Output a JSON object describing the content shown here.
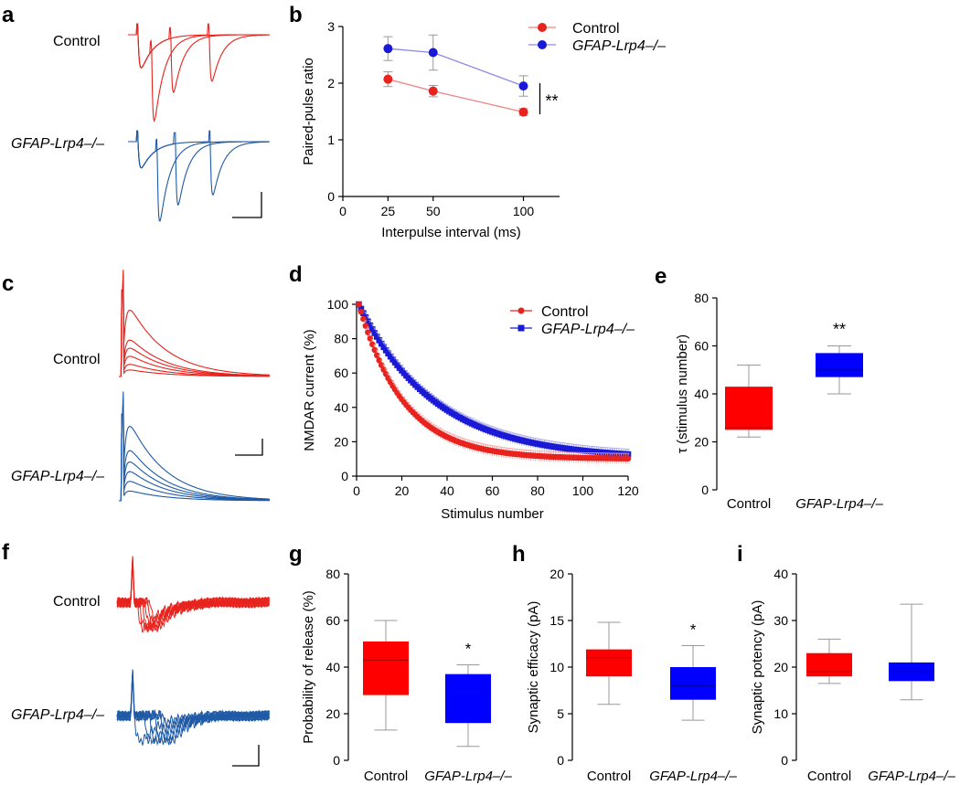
{
  "panel_labels": {
    "a": "a",
    "b": "b",
    "c": "c",
    "d": "d",
    "e": "e",
    "f": "f",
    "g": "g",
    "h": "h",
    "i": "i"
  },
  "groups": {
    "control": "Control",
    "mutant": "GFAP-Lrp4–/–"
  },
  "colors": {
    "control_trace": "#e8231d",
    "mutant_trace": "#1f5aa6",
    "control_marker": "#e8231d",
    "mutant_marker": "#1a1ad6",
    "control_box": "#ff0000",
    "mutant_box": "#0000ff",
    "axis": "#000000",
    "error": "#999999"
  },
  "chart_data": [
    {
      "id": "b",
      "type": "line",
      "xlabel": "Interpulse interval (ms)",
      "ylabel": "Paired-pulse ratio",
      "xlim": [
        0,
        120
      ],
      "ylim": [
        0,
        3
      ],
      "xticks": [
        "0",
        "25",
        "50",
        "100"
      ],
      "yticks": [
        "0",
        "1",
        "2",
        "3"
      ],
      "categories": [
        "25",
        "50",
        "100"
      ],
      "series": [
        {
          "name": "Control",
          "values": [
            2.07,
            1.86,
            1.49
          ],
          "errors": [
            0.13,
            0.1,
            0.06
          ]
        },
        {
          "name": "GFAP-Lrp4–/–",
          "values": [
            2.61,
            2.54,
            1.95
          ],
          "errors": [
            0.21,
            0.31,
            0.18
          ]
        }
      ],
      "annotation": "**",
      "legend": "top-right"
    },
    {
      "id": "d",
      "type": "scatter",
      "xlabel": "Stimulus number",
      "ylabel": "NMDAR current (%)",
      "xlim": [
        0,
        120
      ],
      "ylim": [
        0,
        100
      ],
      "xticks": [
        "0",
        "20",
        "40",
        "60",
        "80",
        "100",
        "120"
      ],
      "yticks": [
        "0",
        "20",
        "40",
        "60",
        "80",
        "100"
      ],
      "series": [
        {
          "name": "Control",
          "tau": 20,
          "plateau": 10,
          "error": 3
        },
        {
          "name": "GFAP-Lrp4–/–",
          "tau": 34,
          "plateau": 10,
          "error": 3
        }
      ],
      "legend": "top-right"
    },
    {
      "id": "e",
      "type": "box",
      "ylabel": "τ (stimulus number)",
      "ylim": [
        0,
        80
      ],
      "yticks": [
        "0",
        "20",
        "40",
        "60",
        "80"
      ],
      "categories": [
        "Control",
        "GFAP-Lrp4–/–"
      ],
      "boxes": [
        {
          "min": 22,
          "q1": 25,
          "median": 26,
          "q3": 43,
          "max": 52
        },
        {
          "min": 40,
          "q1": 47,
          "median": 50,
          "q3": 57,
          "max": 60
        }
      ],
      "annotation": "**"
    },
    {
      "id": "g",
      "type": "box",
      "ylabel": "Probability of release (%)",
      "ylim": [
        0,
        80
      ],
      "yticks": [
        "0",
        "20",
        "40",
        "60",
        "80"
      ],
      "categories": [
        "Control",
        "GFAP-Lrp4–/–"
      ],
      "boxes": [
        {
          "min": 13,
          "q1": 28,
          "median": 43,
          "q3": 51,
          "max": 60
        },
        {
          "min": 6,
          "q1": 16,
          "median": 30,
          "q3": 37,
          "max": 41
        }
      ],
      "annotation": "*"
    },
    {
      "id": "h",
      "type": "box",
      "ylabel": "Synaptic efficacy (pA)",
      "ylim": [
        0,
        20
      ],
      "yticks": [
        "0",
        "5",
        "10",
        "15",
        "20"
      ],
      "categories": [
        "Control",
        "GFAP-Lrp4–/–"
      ],
      "boxes": [
        {
          "min": 6,
          "q1": 9,
          "median": 11,
          "q3": 11.9,
          "max": 14.8
        },
        {
          "min": 4.3,
          "q1": 6.5,
          "median": 8,
          "q3": 10,
          "max": 12.3
        }
      ],
      "annotation": "*"
    },
    {
      "id": "i",
      "type": "box",
      "ylabel": "Synaptic potency (pA)",
      "ylim": [
        0,
        40
      ],
      "yticks": [
        "0",
        "10",
        "20",
        "30",
        "40"
      ],
      "categories": [
        "Control",
        "GFAP-Lrp4–/–"
      ],
      "boxes": [
        {
          "min": 16.5,
          "q1": 18,
          "median": 19,
          "q3": 23,
          "max": 26
        },
        {
          "min": 13,
          "q1": 17,
          "median": 19,
          "q3": 21,
          "max": 33.5
        }
      ],
      "annotation": ""
    }
  ]
}
